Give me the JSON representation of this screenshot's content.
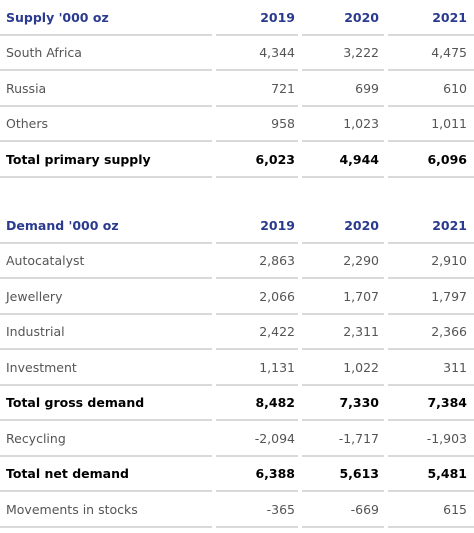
{
  "supply": {
    "header": {
      "label": "Supply '000 oz",
      "y2019": "2019",
      "y2020": "2020",
      "y2021": "2021"
    },
    "rows": [
      {
        "label": "South Africa",
        "v2019": "4,344",
        "v2020": "3,222",
        "v2021": "4,475"
      },
      {
        "label": "Russia",
        "v2019": "721",
        "v2020": "699",
        "v2021": "610"
      },
      {
        "label": "Others",
        "v2019": "958",
        "v2020": "1,023",
        "v2021": "1,011"
      }
    ],
    "total": {
      "label": "Total primary supply",
      "v2019": "6,023",
      "v2020": "4,944",
      "v2021": "6,096"
    }
  },
  "demand": {
    "header": {
      "label": "Demand '000 oz",
      "y2019": "2019",
      "y2020": "2020",
      "y2021": "2021"
    },
    "rows": [
      {
        "label": "Autocatalyst",
        "v2019": "2,863",
        "v2020": "2,290",
        "v2021": "2,910"
      },
      {
        "label": "Jewellery",
        "v2019": "2,066",
        "v2020": "1,707",
        "v2021": "1,797"
      },
      {
        "label": "Industrial",
        "v2019": "2,422",
        "v2020": "2,311",
        "v2021": "2,366"
      },
      {
        "label": "Investment",
        "v2019": "1,131",
        "v2020": "1,022",
        "v2021": "311"
      }
    ],
    "gross_total": {
      "label": "Total gross demand",
      "v2019": "8,482",
      "v2020": "7,330",
      "v2021": "7,384"
    },
    "recycling": {
      "label": "Recycling",
      "v2019": "-2,094",
      "v2020": "-1,717",
      "v2021": "-1,903"
    },
    "net_total": {
      "label": "Total net demand",
      "v2019": "6,388",
      "v2020": "5,613",
      "v2021": "5,481"
    },
    "movements": {
      "label": "Movements in stocks",
      "v2019": "-365",
      "v2020": "-669",
      "v2021": "615"
    }
  },
  "colors": {
    "header_text": "#2a3a8f",
    "data_text": "#555555",
    "total_text": "#000000",
    "separator": "#d9d9d9"
  }
}
